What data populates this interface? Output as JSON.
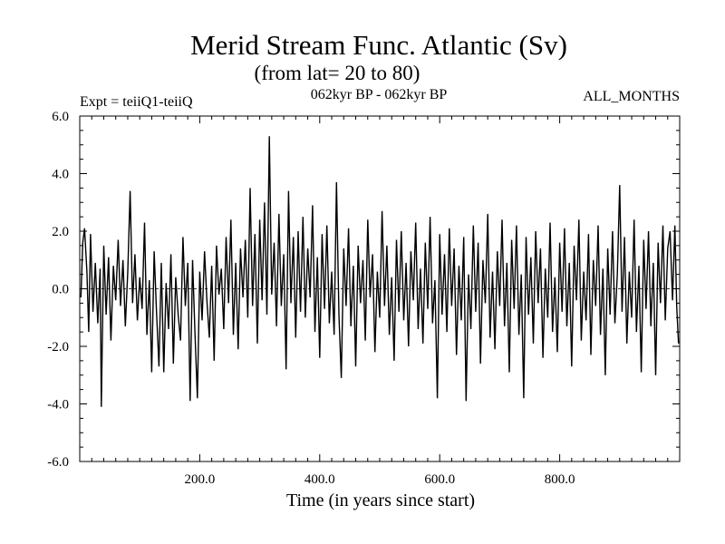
{
  "chart_data": {
    "type": "line",
    "title": "Merid Stream Func. Atlantic (Sv)",
    "subtitle": "(from lat= 20 to 80)",
    "experiment": "Expt = teiiQ1-teiiQ",
    "period": "062kyr BP - 062kyr BP",
    "months": "ALL_MONTHS",
    "xlabel": "Time (in years since start)",
    "ylabel": "",
    "xlim": [
      0,
      1000
    ],
    "ylim": [
      -6,
      6
    ],
    "x_ticks": [
      200,
      400,
      600,
      800
    ],
    "x_tick_labels": [
      "200.0",
      "400.0",
      "600.0",
      "800.0"
    ],
    "y_ticks": [
      6,
      4,
      2,
      0,
      -2,
      -4,
      -6
    ],
    "y_tick_labels": [
      "6.0",
      "4.0",
      "2.0",
      "0.0",
      "-2.0",
      "-4.0",
      "-6.0"
    ],
    "zero_line": true,
    "grid": false,
    "series": [
      {
        "points": [
          [
            2,
            -0.3
          ],
          [
            5,
            1.6
          ],
          [
            8,
            2.1
          ],
          [
            12,
            0.6
          ],
          [
            15,
            -1.5
          ],
          [
            18,
            1.9
          ],
          [
            22,
            -0.8
          ],
          [
            26,
            0.9
          ],
          [
            30,
            -1.2
          ],
          [
            34,
            0.7
          ],
          [
            36,
            -4.1
          ],
          [
            40,
            1.5
          ],
          [
            44,
            -0.9
          ],
          [
            48,
            1.1
          ],
          [
            52,
            -1.8
          ],
          [
            56,
            0.8
          ],
          [
            60,
            -0.4
          ],
          [
            64,
            1.7
          ],
          [
            68,
            -0.6
          ],
          [
            72,
            1.0
          ],
          [
            76,
            -1.3
          ],
          [
            80,
            0.6
          ],
          [
            84,
            3.4
          ],
          [
            88,
            -0.5
          ],
          [
            92,
            1.2
          ],
          [
            96,
            -1.1
          ],
          [
            100,
            0.4
          ],
          [
            104,
            -0.7
          ],
          [
            108,
            2.3
          ],
          [
            112,
            -1.6
          ],
          [
            116,
            0.3
          ],
          [
            120,
            -2.9
          ],
          [
            124,
            1.3
          ],
          [
            128,
            -0.8
          ],
          [
            132,
            -2.7
          ],
          [
            136,
            0.9
          ],
          [
            140,
            -2.9
          ],
          [
            144,
            0.2
          ],
          [
            148,
            -1.4
          ],
          [
            152,
            1.2
          ],
          [
            156,
            -2.6
          ],
          [
            160,
            0.4
          ],
          [
            164,
            -0.9
          ],
          [
            168,
            -1.8
          ],
          [
            172,
            1.8
          ],
          [
            176,
            -0.6
          ],
          [
            180,
            0.9
          ],
          [
            184,
            -3.9
          ],
          [
            188,
            1.0
          ],
          [
            192,
            -1.5
          ],
          [
            196,
            -3.8
          ],
          [
            200,
            0.6
          ],
          [
            204,
            -1.1
          ],
          [
            208,
            1.3
          ],
          [
            212,
            -0.4
          ],
          [
            216,
            -1.7
          ],
          [
            220,
            0.8
          ],
          [
            224,
            -2.5
          ],
          [
            228,
            1.5
          ],
          [
            232,
            -0.2
          ],
          [
            236,
            0.7
          ],
          [
            240,
            -1.4
          ],
          [
            244,
            1.8
          ],
          [
            248,
            -0.5
          ],
          [
            252,
            2.4
          ],
          [
            256,
            -1.6
          ],
          [
            260,
            0.9
          ],
          [
            264,
            -2.1
          ],
          [
            268,
            1.4
          ],
          [
            272,
            -0.3
          ],
          [
            276,
            1.7
          ],
          [
            280,
            -1.0
          ],
          [
            284,
            3.5
          ],
          [
            288,
            -0.6
          ],
          [
            292,
            1.9
          ],
          [
            296,
            -1.9
          ],
          [
            300,
            2.4
          ],
          [
            304,
            -0.4
          ],
          [
            308,
            3.0
          ],
          [
            312,
            -0.9
          ],
          [
            316,
            5.3
          ],
          [
            320,
            -0.2
          ],
          [
            324,
            1.6
          ],
          [
            328,
            -1.3
          ],
          [
            332,
            2.6
          ],
          [
            336,
            -0.6
          ],
          [
            340,
            1.2
          ],
          [
            344,
            -2.8
          ],
          [
            348,
            3.4
          ],
          [
            352,
            -0.5
          ],
          [
            356,
            1.8
          ],
          [
            360,
            -1.7
          ],
          [
            364,
            2.0
          ],
          [
            368,
            -0.8
          ],
          [
            372,
            2.5
          ],
          [
            376,
            -1.0
          ],
          [
            380,
            1.4
          ],
          [
            384,
            -0.3
          ],
          [
            388,
            2.9
          ],
          [
            392,
            -1.5
          ],
          [
            396,
            1.1
          ],
          [
            400,
            -2.4
          ],
          [
            404,
            1.9
          ],
          [
            408,
            -0.7
          ],
          [
            412,
            2.2
          ],
          [
            416,
            -1.2
          ],
          [
            420,
            0.6
          ],
          [
            424,
            -1.6
          ],
          [
            428,
            3.7
          ],
          [
            432,
            -0.9
          ],
          [
            436,
            -3.1
          ],
          [
            440,
            1.4
          ],
          [
            444,
            -0.6
          ],
          [
            448,
            2.1
          ],
          [
            452,
            -1.3
          ],
          [
            456,
            0.8
          ],
          [
            460,
            -2.7
          ],
          [
            464,
            1.5
          ],
          [
            468,
            -0.5
          ],
          [
            472,
            1.0
          ],
          [
            476,
            -1.8
          ],
          [
            480,
            2.4
          ],
          [
            484,
            -0.3
          ],
          [
            488,
            1.2
          ],
          [
            492,
            -2.2
          ],
          [
            496,
            0.6
          ],
          [
            500,
            -1.0
          ],
          [
            504,
            2.7
          ],
          [
            508,
            -0.6
          ],
          [
            512,
            1.5
          ],
          [
            516,
            -1.6
          ],
          [
            520,
            0.4
          ],
          [
            524,
            -2.5
          ],
          [
            528,
            1.7
          ],
          [
            532,
            -0.8
          ],
          [
            536,
            2.0
          ],
          [
            540,
            -1.1
          ],
          [
            544,
            0.9
          ],
          [
            548,
            -2.0
          ],
          [
            552,
            1.3
          ],
          [
            556,
            -0.4
          ],
          [
            560,
            2.3
          ],
          [
            564,
            -1.4
          ],
          [
            568,
            0.7
          ],
          [
            572,
            -1.9
          ],
          [
            576,
            1.6
          ],
          [
            580,
            -0.7
          ],
          [
            584,
            2.5
          ],
          [
            588,
            -1.2
          ],
          [
            592,
            0.3
          ],
          [
            596,
            -3.8
          ],
          [
            600,
            1.9
          ],
          [
            604,
            -0.9
          ],
          [
            608,
            1.2
          ],
          [
            612,
            -1.5
          ],
          [
            616,
            2.1
          ],
          [
            620,
            -0.6
          ],
          [
            624,
            1.4
          ],
          [
            628,
            -2.3
          ],
          [
            632,
            0.8
          ],
          [
            636,
            -1.1
          ],
          [
            640,
            1.8
          ],
          [
            644,
            -3.9
          ],
          [
            648,
            0.5
          ],
          [
            652,
            -1.4
          ],
          [
            656,
            2.2
          ],
          [
            660,
            -0.8
          ],
          [
            664,
            1.6
          ],
          [
            668,
            -2.6
          ],
          [
            672,
            1.0
          ],
          [
            676,
            -0.5
          ],
          [
            680,
            2.6
          ],
          [
            684,
            -1.7
          ],
          [
            688,
            0.6
          ],
          [
            692,
            -2.1
          ],
          [
            696,
            1.3
          ],
          [
            700,
            -0.6
          ],
          [
            704,
            2.4
          ],
          [
            708,
            -1.3
          ],
          [
            712,
            0.9
          ],
          [
            716,
            -2.9
          ],
          [
            720,
            1.7
          ],
          [
            724,
            -0.7
          ],
          [
            728,
            2.2
          ],
          [
            732,
            -1.6
          ],
          [
            736,
            0.5
          ],
          [
            740,
            -3.8
          ],
          [
            744,
            1.8
          ],
          [
            748,
            -0.9
          ],
          [
            752,
            1.1
          ],
          [
            756,
            -1.9
          ],
          [
            760,
            2.0
          ],
          [
            764,
            -0.5
          ],
          [
            768,
            1.4
          ],
          [
            772,
            -2.4
          ],
          [
            776,
            0.7
          ],
          [
            780,
            -1.0
          ],
          [
            784,
            2.3
          ],
          [
            788,
            -1.5
          ],
          [
            792,
            0.4
          ],
          [
            796,
            -2.2
          ],
          [
            800,
            1.6
          ],
          [
            804,
            -0.8
          ],
          [
            808,
            2.1
          ],
          [
            812,
            -1.3
          ],
          [
            816,
            0.9
          ],
          [
            820,
            -2.7
          ],
          [
            824,
            1.5
          ],
          [
            828,
            -0.4
          ],
          [
            832,
            2.4
          ],
          [
            836,
            -1.8
          ],
          [
            840,
            0.6
          ],
          [
            844,
            -1.1
          ],
          [
            848,
            1.9
          ],
          [
            852,
            -2.3
          ],
          [
            856,
            1.0
          ],
          [
            860,
            -0.6
          ],
          [
            864,
            2.2
          ],
          [
            868,
            -1.6
          ],
          [
            872,
            0.7
          ],
          [
            876,
            -3.0
          ],
          [
            880,
            1.4
          ],
          [
            884,
            -0.9
          ],
          [
            888,
            2.0
          ],
          [
            892,
            -1.2
          ],
          [
            896,
            0.5
          ],
          [
            900,
            3.6
          ],
          [
            904,
            -0.8
          ],
          [
            908,
            1.8
          ],
          [
            912,
            -1.9
          ],
          [
            916,
            0.6
          ],
          [
            920,
            -1.0
          ],
          [
            924,
            2.4
          ],
          [
            928,
            -1.5
          ],
          [
            932,
            0.8
          ],
          [
            936,
            -2.9
          ],
          [
            940,
            1.7
          ],
          [
            944,
            -0.7
          ],
          [
            948,
            2.0
          ],
          [
            952,
            -1.3
          ],
          [
            956,
            0.9
          ],
          [
            960,
            -3.0
          ],
          [
            964,
            1.6
          ],
          [
            968,
            -0.5
          ],
          [
            972,
            2.2
          ],
          [
            976,
            -1.1
          ],
          [
            980,
            1.4
          ],
          [
            984,
            2.0
          ],
          [
            988,
            -0.4
          ],
          [
            992,
            2.2
          ],
          [
            995,
            -0.6
          ],
          [
            998,
            -1.9
          ]
        ]
      }
    ]
  }
}
